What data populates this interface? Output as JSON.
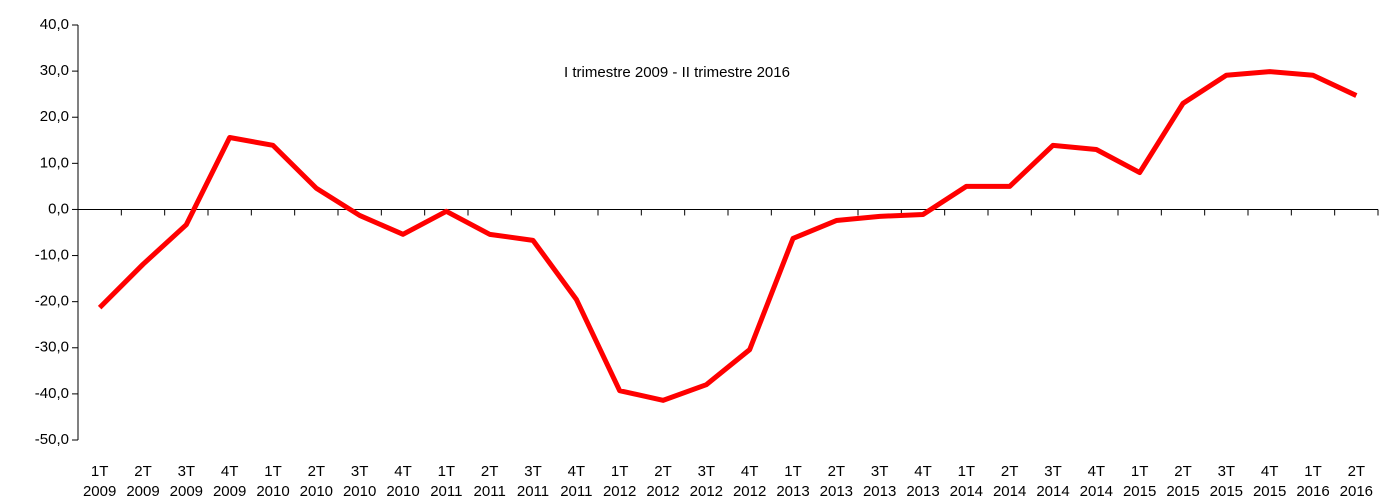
{
  "chart_data": {
    "type": "line",
    "title": "I trimestre 2009 - II trimestre 2016",
    "categories": [
      [
        "1T",
        "2009"
      ],
      [
        "2T",
        "2009"
      ],
      [
        "3T",
        "2009"
      ],
      [
        "4T",
        "2009"
      ],
      [
        "1T",
        "2010"
      ],
      [
        "2T",
        "2010"
      ],
      [
        "3T",
        "2010"
      ],
      [
        "4T",
        "2010"
      ],
      [
        "1T",
        "2011"
      ],
      [
        "2T",
        "2011"
      ],
      [
        "3T",
        "2011"
      ],
      [
        "4T",
        "2011"
      ],
      [
        "1T",
        "2012"
      ],
      [
        "2T",
        "2012"
      ],
      [
        "3T",
        "2012"
      ],
      [
        "4T",
        "2012"
      ],
      [
        "1T",
        "2013"
      ],
      [
        "2T",
        "2013"
      ],
      [
        "3T",
        "2013"
      ],
      [
        "4T",
        "2013"
      ],
      [
        "1T",
        "2014"
      ],
      [
        "2T",
        "2014"
      ],
      [
        "3T",
        "2014"
      ],
      [
        "4T",
        "2014"
      ],
      [
        "1T",
        "2015"
      ],
      [
        "2T",
        "2015"
      ],
      [
        "3T",
        "2015"
      ],
      [
        "4T",
        "2015"
      ],
      [
        "1T",
        "2016"
      ],
      [
        "2T",
        "2016"
      ]
    ],
    "values": [
      -21.3,
      -11.9,
      -3.3,
      15.6,
      13.9,
      4.6,
      -1.3,
      -5.4,
      -0.4,
      -5.4,
      -6.7,
      -19.5,
      -39.3,
      -41.4,
      -38.0,
      -30.4,
      -6.3,
      -2.4,
      -1.5,
      -1.1,
      5.0,
      5.0,
      13.9,
      13.0,
      8.0,
      23.0,
      29.1,
      29.9,
      29.1,
      24.7
    ],
    "color": "#ff0000",
    "ylim": [
      -50,
      40
    ],
    "yticks": [
      {
        "value": -50,
        "label": "-50,0"
      },
      {
        "value": -40,
        "label": "-40,0"
      },
      {
        "value": -30,
        "label": "-30,0"
      },
      {
        "value": -20,
        "label": "-20,0"
      },
      {
        "value": -10,
        "label": "-10,0"
      },
      {
        "value": 0,
        "label": "0,0"
      },
      {
        "value": 10,
        "label": "10,0"
      },
      {
        "value": 20,
        "label": "20,0"
      },
      {
        "value": 30,
        "label": "30,0"
      },
      {
        "value": 40,
        "label": "40,0"
      }
    ],
    "grid": false
  }
}
